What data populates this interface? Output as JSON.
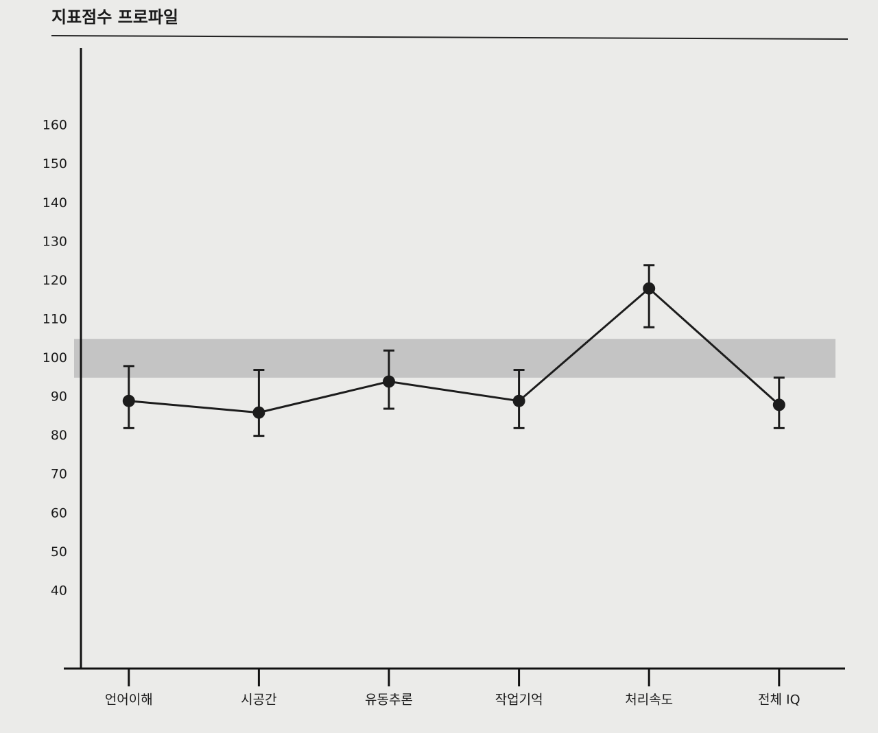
{
  "chart_data": {
    "type": "line",
    "title": "지표점수 프로파일",
    "categories": [
      "언어이해",
      "시공간",
      "유동추론",
      "작업기억",
      "처리속도",
      "전체 IQ"
    ],
    "series": [
      {
        "color": "#1c1c1c",
        "values": [
          89,
          86,
          94,
          89,
          118,
          88
        ],
        "lower": [
          82,
          80,
          87,
          82,
          108,
          82
        ],
        "upper": [
          98,
          97,
          102,
          97,
          124,
          95
        ]
      }
    ],
    "reference_band": [
      95,
      105
    ],
    "band_color": "#c4c4c4",
    "ylim": [
      20,
      180
    ],
    "yticks": [
      40,
      50,
      60,
      70,
      80,
      90,
      100,
      110,
      120,
      130,
      140,
      150,
      160
    ]
  }
}
